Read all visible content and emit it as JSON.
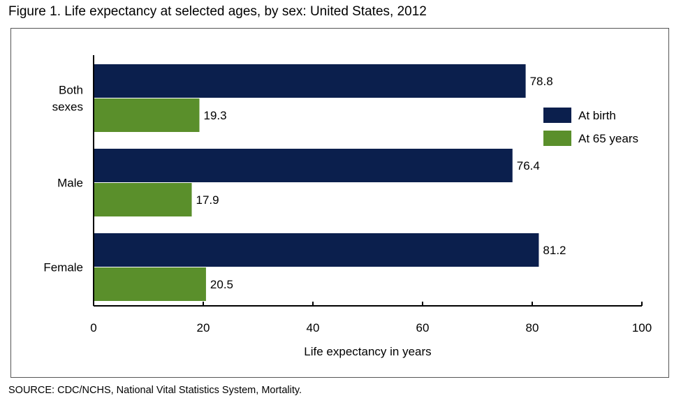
{
  "figure": {
    "title": "Figure 1. Life expectancy at selected ages, by sex: United States, 2012",
    "source": "SOURCE: CDC/NCHS, National Vital Statistics System, Mortality."
  },
  "colors": {
    "at_birth": "#0b1f4d",
    "at_65": "#5a8f2b",
    "axis": "#000000"
  },
  "chart_data": {
    "type": "bar",
    "orientation": "horizontal",
    "title": "Figure 1. Life expectancy at selected ages, by sex: United States, 2012",
    "xlabel": "Life expectancy in years",
    "ylabel": "",
    "xlim": [
      0,
      100
    ],
    "xticks": [
      0,
      20,
      40,
      60,
      80,
      100
    ],
    "categories": [
      {
        "lines": [
          "Both",
          "sexes"
        ]
      },
      {
        "lines": [
          "Male"
        ]
      },
      {
        "lines": [
          "Female"
        ]
      }
    ],
    "series": [
      {
        "name": "At birth",
        "values": [
          78.8,
          76.4,
          81.2
        ],
        "labels": [
          "78.8",
          "76.4",
          "81.2"
        ]
      },
      {
        "name": "At 65 years",
        "values": [
          19.3,
          17.9,
          20.5
        ],
        "labels": [
          "19.3",
          "17.9",
          "20.5"
        ]
      }
    ],
    "legend_position": "right",
    "grid": false
  }
}
